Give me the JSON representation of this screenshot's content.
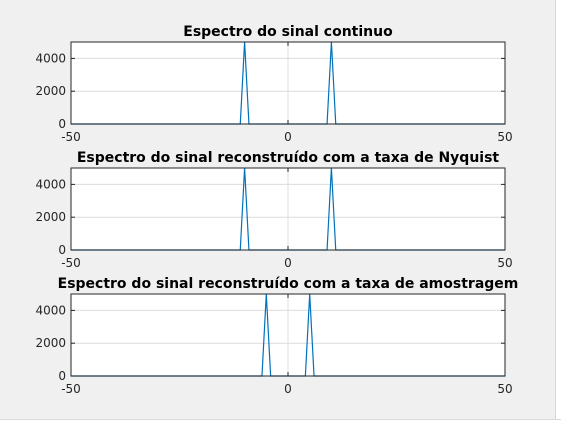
{
  "chart_data": [
    {
      "type": "line",
      "title": "Espectro do sinal continuo",
      "xlim": [
        -50,
        50
      ],
      "ylim": [
        0,
        5000
      ],
      "xticks": [
        -50,
        0,
        50
      ],
      "yticks": [
        0,
        2000,
        4000
      ],
      "grid": true,
      "series": [
        {
          "color": "#0072bd",
          "x": [
            -50,
            -11,
            -10,
            -9,
            9,
            10,
            11,
            50
          ],
          "y": [
            0,
            0,
            5000,
            0,
            0,
            5000,
            0,
            0
          ]
        }
      ]
    },
    {
      "type": "line",
      "title": "Espectro do sinal reconstruído com a taxa de Nyquist",
      "xlim": [
        -50,
        50
      ],
      "ylim": [
        0,
        5000
      ],
      "xticks": [
        -50,
        0,
        50
      ],
      "yticks": [
        0,
        2000,
        4000
      ],
      "grid": true,
      "series": [
        {
          "color": "#0072bd",
          "x": [
            -50,
            -11,
            -10,
            -9,
            9,
            10,
            11,
            50
          ],
          "y": [
            0,
            0,
            5000,
            0,
            0,
            5000,
            0,
            0
          ]
        }
      ]
    },
    {
      "type": "line",
      "title": "Espectro do sinal reconstruído com a taxa de amostragem",
      "xlim": [
        -50,
        50
      ],
      "ylim": [
        0,
        5000
      ],
      "xticks": [
        -50,
        0,
        50
      ],
      "yticks": [
        0,
        2000,
        4000
      ],
      "grid": true,
      "series": [
        {
          "color": "#0072bd",
          "x": [
            -50,
            -6,
            -5,
            -4,
            4,
            5,
            6,
            50
          ],
          "y": [
            0,
            0,
            5000,
            0,
            0,
            5000,
            0,
            0
          ]
        }
      ]
    }
  ]
}
